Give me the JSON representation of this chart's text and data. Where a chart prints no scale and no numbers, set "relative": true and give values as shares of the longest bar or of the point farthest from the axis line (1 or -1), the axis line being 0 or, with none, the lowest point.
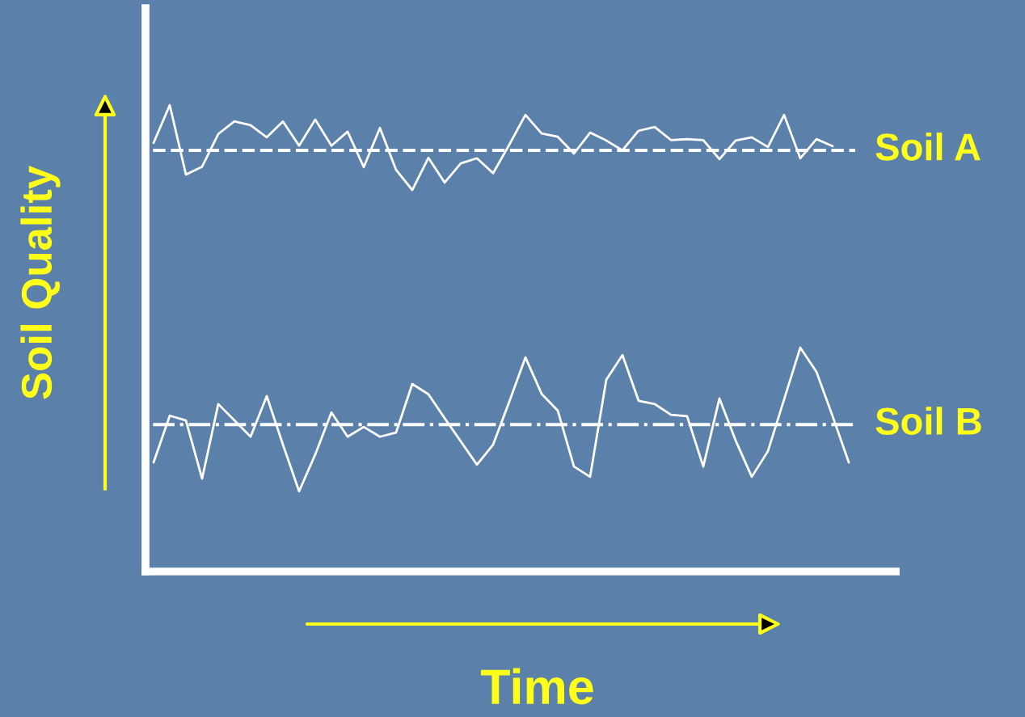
{
  "chart_data": {
    "type": "line",
    "relative": true,
    "xlabel": "Time",
    "ylabel": "Soil Quality",
    "categories": [
      null,
      null,
      null,
      null,
      null,
      null,
      null,
      null,
      null,
      null,
      null,
      null,
      null,
      null,
      null,
      null,
      null,
      null,
      null,
      null,
      null,
      null,
      null,
      null,
      null,
      null,
      null,
      null,
      null,
      null,
      null,
      null,
      null,
      null,
      null,
      null,
      null,
      null,
      null,
      null,
      null,
      null,
      null,
      null
    ],
    "series": [
      {
        "color": "#ffffff",
        "values": [
          0.919,
          1.0,
          0.851,
          0.868,
          0.938,
          0.965,
          0.957,
          0.931,
          0.965,
          0.913,
          0.969,
          0.913,
          0.943,
          0.867,
          0.951,
          0.861,
          0.818,
          0.887,
          0.834,
          0.875,
          0.886,
          0.854,
          0.915,
          0.979,
          0.939,
          0.932,
          0.896,
          0.941,
          0.924,
          0.903,
          0.945,
          0.953,
          0.925,
          0.927,
          0.925,
          0.884,
          0.924,
          0.931,
          0.91,
          0.979,
          0.886,
          0.927,
          0.912,
          null
        ]
      },
      {
        "color": "#ffffff",
        "values": [
          0.234,
          0.334,
          0.324,
          0.199,
          0.359,
          0.324,
          0.289,
          0.376,
          0.272,
          0.172,
          0.251,
          0.341,
          0.289,
          0.31,
          0.289,
          0.298,
          0.402,
          0.38,
          0.329,
          0.279,
          0.229,
          0.272,
          0.364,
          0.459,
          0.381,
          0.345,
          0.225,
          0.203,
          0.411,
          0.464,
          0.366,
          0.359,
          0.336,
          0.333,
          0.225,
          0.371,
          0.281,
          0.203,
          0.258,
          0.369,
          0.48,
          0.428,
          0.333,
          0.234
        ]
      }
    ],
    "ref_lines": [
      {
        "axis": "y",
        "value": 0.903,
        "label": "Soil A",
        "color": "#ffffff",
        "line_style": "dashed"
      },
      {
        "axis": "y",
        "value": 0.315,
        "label": "Soil B",
        "color": "#ffffff",
        "line_style": "dashdot"
      }
    ],
    "legend": false,
    "marker": "none",
    "line_style": "solid"
  }
}
